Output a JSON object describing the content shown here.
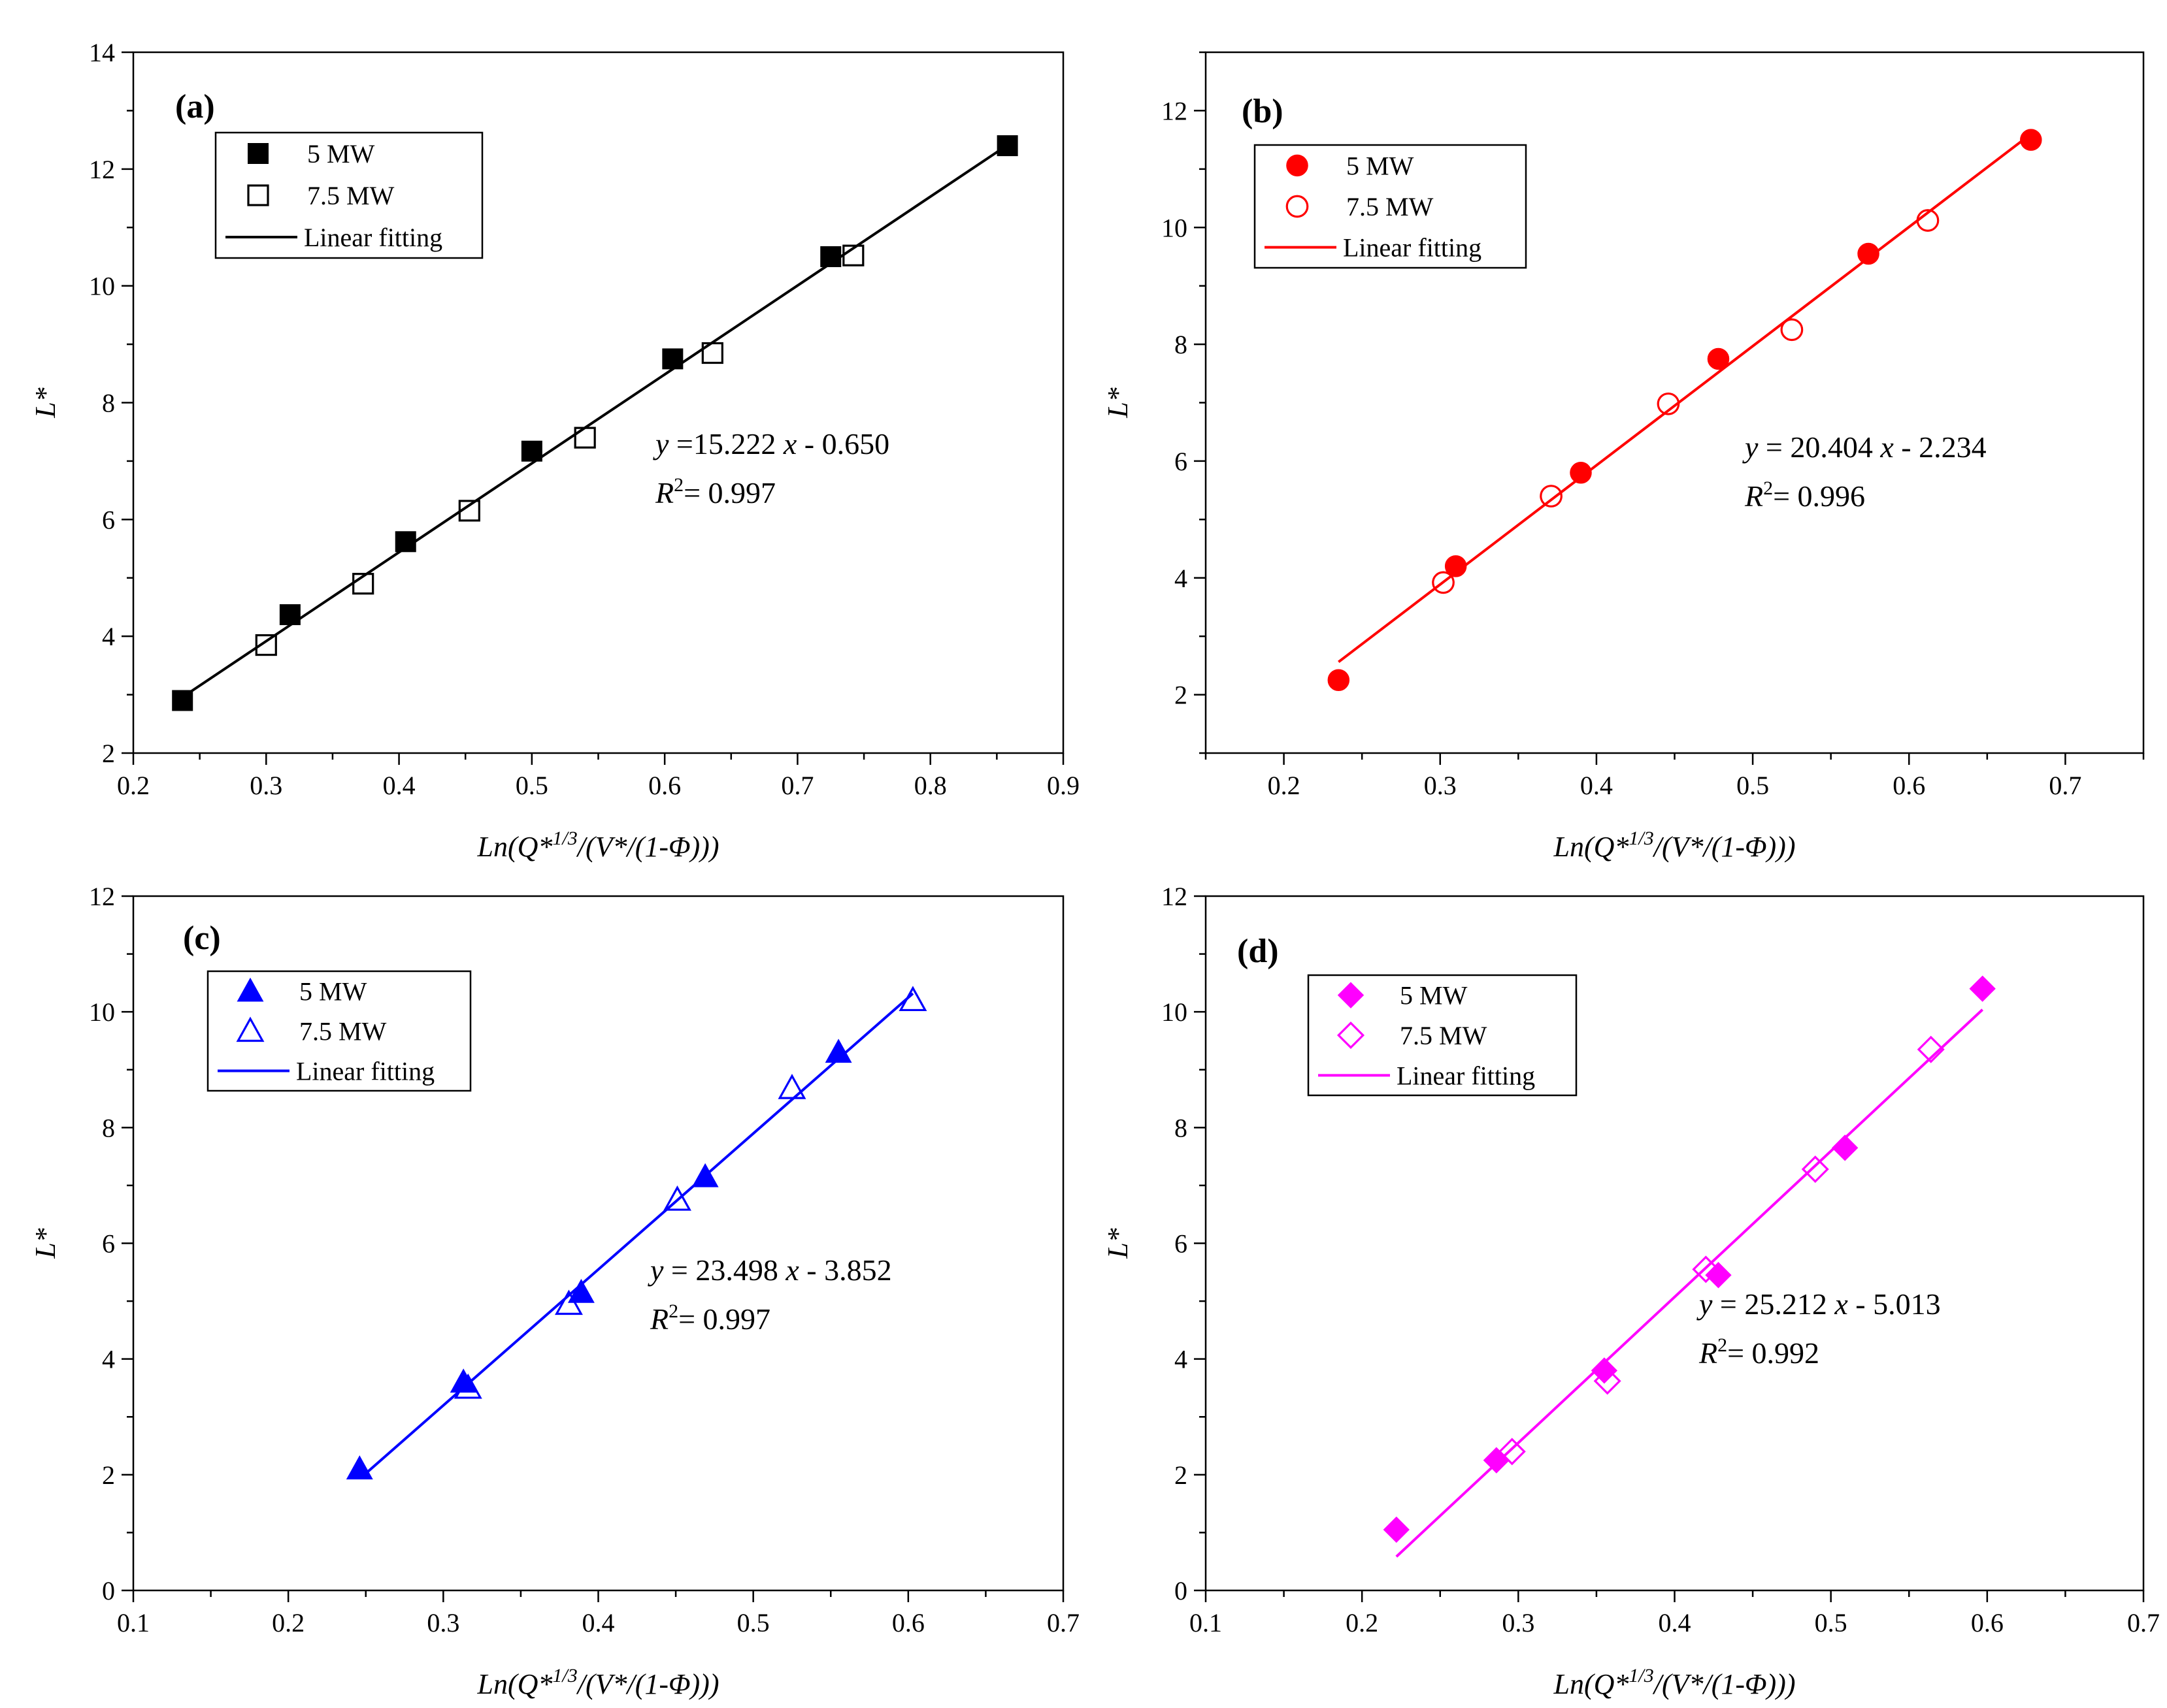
{
  "chart_data": [
    {
      "type": "scatter",
      "panel": "(a)",
      "color": "#000000",
      "marker": "square",
      "xlabel": "Ln(Q*1/3/(V*/(1-Φ)))",
      "ylabel": "L*",
      "xlim": [
        0.2,
        0.9
      ],
      "ylim": [
        2,
        14
      ],
      "xticks": [
        0.2,
        0.3,
        0.4,
        0.5,
        0.6,
        0.7,
        0.8,
        0.9
      ],
      "yticks": [
        2,
        4,
        6,
        8,
        10,
        12,
        14
      ],
      "xtick_labels": [
        "0.2",
        "0.3",
        "0.4",
        "0.5",
        "0.6",
        "0.7",
        "0.8",
        "0.9"
      ],
      "ytick_labels": [
        "2",
        "4",
        "6",
        "8",
        "10",
        "12",
        "14"
      ],
      "legend": [
        "5 MW",
        "7.5 MW",
        "Linear fitting"
      ],
      "equation": "y =15.222 x - 0.650",
      "r2": "R2= 0.997",
      "fit": {
        "slope": 15.222,
        "intercept": -0.65,
        "x_range": [
          0.237,
          0.858
        ]
      },
      "series": [
        {
          "name": "5 MW",
          "filled": true,
          "x": [
            0.237,
            0.318,
            0.405,
            0.5,
            0.606,
            0.725,
            0.858
          ],
          "y": [
            2.9,
            4.37,
            5.62,
            7.17,
            8.75,
            10.5,
            12.4
          ]
        },
        {
          "name": "7.5 MW",
          "filled": false,
          "x": [
            0.3,
            0.373,
            0.453,
            0.54,
            0.636,
            0.742
          ],
          "y": [
            3.85,
            4.9,
            6.15,
            7.4,
            8.85,
            10.52
          ]
        }
      ]
    },
    {
      "type": "scatter",
      "panel": "(b)",
      "color": "#ff0000",
      "marker": "circle",
      "xlabel": "Ln(Q*1/3/(V*/(1-Φ)))",
      "ylabel": "L*",
      "xlim": [
        0.15,
        0.75
      ],
      "ylim": [
        1,
        13
      ],
      "xticks": [
        0.2,
        0.3,
        0.4,
        0.5,
        0.6,
        0.7
      ],
      "yticks": [
        2,
        4,
        6,
        8,
        10,
        12
      ],
      "xtick_labels": [
        "0.2",
        "0.3",
        "0.4",
        "0.5",
        "0.6",
        "0.7"
      ],
      "ytick_labels": [
        "2",
        "4",
        "6",
        "8",
        "10",
        "12"
      ],
      "legend": [
        "5 MW",
        "7.5 MW",
        "Linear fitting"
      ],
      "equation": "y = 20.404 x - 2.234",
      "r2": "R2= 0.996",
      "fit": {
        "slope": 20.404,
        "intercept": -2.234,
        "x_range": [
          0.235,
          0.678
        ]
      },
      "series": [
        {
          "name": "5 MW",
          "filled": true,
          "x": [
            0.235,
            0.31,
            0.39,
            0.478,
            0.574,
            0.678
          ],
          "y": [
            2.25,
            4.2,
            5.8,
            7.75,
            9.55,
            11.5
          ]
        },
        {
          "name": "7.5 MW",
          "filled": false,
          "x": [
            0.302,
            0.371,
            0.446,
            0.525,
            0.612
          ],
          "y": [
            3.92,
            5.4,
            6.98,
            8.25,
            10.12
          ]
        }
      ]
    },
    {
      "type": "scatter",
      "panel": "(c)",
      "color": "#0000ff",
      "marker": "triangle",
      "xlabel": "Ln(Q*1/3/(V*/(1-Φ)))",
      "ylabel": "L*",
      "xlim": [
        0.1,
        0.7
      ],
      "ylim": [
        0,
        12
      ],
      "xticks": [
        0.1,
        0.2,
        0.3,
        0.4,
        0.5,
        0.6,
        0.7
      ],
      "yticks": [
        0,
        2,
        4,
        6,
        8,
        10,
        12
      ],
      "xtick_labels": [
        "0.1",
        "0.2",
        "0.3",
        "0.4",
        "0.5",
        "0.6",
        "0.7"
      ],
      "ytick_labels": [
        "0",
        "2",
        "4",
        "6",
        "8",
        "10",
        "12"
      ],
      "legend": [
        "5 MW",
        "7.5 MW",
        "Linear fitting"
      ],
      "equation": "y = 23.498 x - 3.852",
      "r2": "R2= 0.997",
      "fit": {
        "slope": 23.498,
        "intercept": -3.852,
        "x_range": [
          0.247,
          0.603
        ]
      },
      "series": [
        {
          "name": "5 MW",
          "filled": true,
          "x": [
            0.246,
            0.313,
            0.389,
            0.469,
            0.555
          ],
          "y": [
            2.1,
            3.6,
            5.15,
            7.15,
            9.3
          ]
        },
        {
          "name": "7.5 MW",
          "filled": false,
          "x": [
            0.316,
            0.381,
            0.451,
            0.525,
            0.603
          ],
          "y": [
            3.5,
            4.95,
            6.75,
            8.68,
            10.2
          ]
        }
      ]
    },
    {
      "type": "scatter",
      "panel": "(d)",
      "color": "#ff00ff",
      "marker": "diamond",
      "xlabel": "Ln(Q*1/3/(V*/(1-Φ)))",
      "ylabel": "L*",
      "xlim": [
        0.1,
        0.7
      ],
      "ylim": [
        0,
        12
      ],
      "xticks": [
        0.1,
        0.2,
        0.3,
        0.4,
        0.5,
        0.6,
        0.7
      ],
      "yticks": [
        0,
        2,
        4,
        6,
        8,
        10,
        12
      ],
      "xtick_labels": [
        "0.1",
        "0.2",
        "0.3",
        "0.4",
        "0.5",
        "0.6",
        "0.7"
      ],
      "ytick_labels": [
        "0",
        "2",
        "4",
        "6",
        "8",
        "10",
        "12"
      ],
      "legend": [
        "5 MW",
        "7.5 MW",
        "Linear fitting"
      ],
      "equation": "y = 25.212 x - 5.013",
      "r2": "R2= 0.992",
      "fit": {
        "slope": 25.212,
        "intercept": -5.013,
        "x_range": [
          0.222,
          0.597
        ]
      },
      "series": [
        {
          "name": "5 MW",
          "filled": true,
          "x": [
            0.222,
            0.286,
            0.355,
            0.428,
            0.509,
            0.597
          ],
          "y": [
            1.05,
            2.25,
            3.8,
            5.45,
            7.65,
            10.4
          ]
        },
        {
          "name": "7.5 MW",
          "filled": false,
          "x": [
            0.296,
            0.357,
            0.42,
            0.49,
            0.564
          ],
          "y": [
            2.4,
            3.62,
            5.55,
            7.28,
            9.35
          ]
        }
      ]
    }
  ]
}
